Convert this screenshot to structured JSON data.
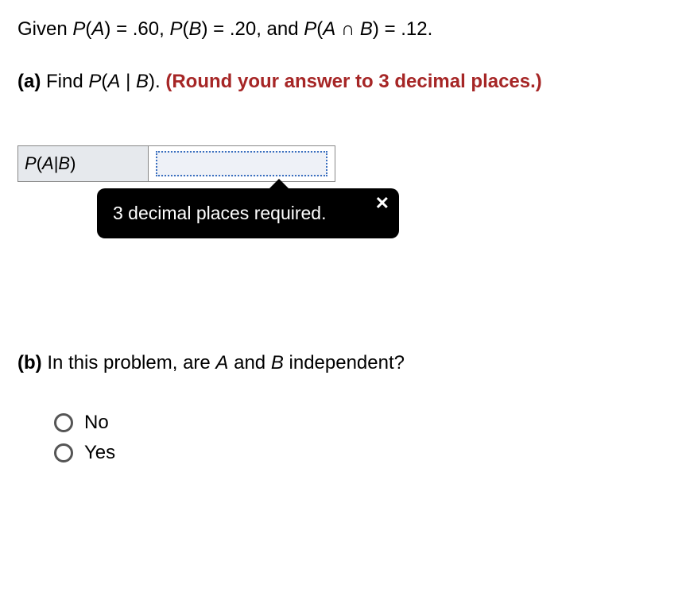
{
  "intro": {
    "prefix": "Given ",
    "pa_expr": "P",
    "pa_arg_open": "(",
    "pa_arg": "A",
    "pa_arg_close": ")",
    "eq1": " = .60, ",
    "pb_expr": "P",
    "pb_arg_open": "(",
    "pb_arg": "B",
    "pb_arg_close": ")",
    "eq2": " = .20, and ",
    "pab_expr": "P",
    "pab_arg_open": "(",
    "pab_argA": "A",
    "cap": " ∩ ",
    "pab_argB": "B",
    "pab_arg_close": ")",
    "eq3": " = .12."
  },
  "partA": {
    "label": "(a)",
    "find": " Find ",
    "expr_P": "P",
    "expr_open": "(",
    "expr_A": "A",
    "expr_bar": " | ",
    "expr_B": "B",
    "expr_close": ").",
    "hint": " (Round your answer to 3 decimal places.)"
  },
  "answerRow": {
    "label_P": "P",
    "label_open": "(",
    "label_A": "A",
    "label_bar": " | ",
    "label_B": "B",
    "label_close": ")",
    "value": ""
  },
  "tooltip": {
    "text": "3 decimal places required.",
    "close": "✕"
  },
  "partB": {
    "label": "(b)",
    "text1": " In this problem, are ",
    "A": "A",
    "and": " and ",
    "B": "B",
    "text2": " independent?"
  },
  "radios": {
    "no": "No",
    "yes": "Yes"
  },
  "colors": {
    "hint": "#a62626",
    "cell_bg": "#e6e9ed",
    "input_border": "#3a6fbf",
    "input_bg": "#eef1f7",
    "tooltip_bg": "#000000"
  }
}
